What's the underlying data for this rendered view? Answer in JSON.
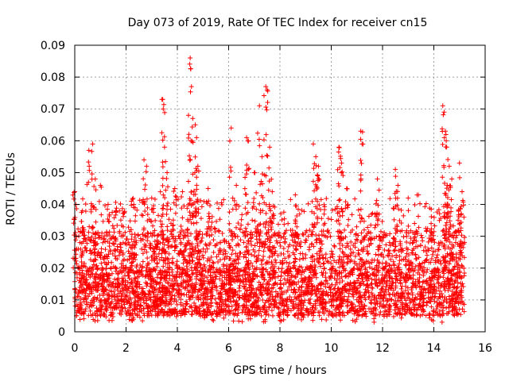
{
  "chart_data": {
    "type": "scatter",
    "title": "Day 073 of 2019, Rate Of TEC Index for receiver cn15",
    "xlabel": "GPS time / hours",
    "ylabel": "ROTI / TECUs",
    "xlim": [
      0,
      16
    ],
    "ylim": [
      0,
      0.09
    ],
    "grid": true,
    "marker": "plus",
    "marker_color": "#ff0000",
    "x_ticks": [
      {
        "value": 0,
        "label": "0"
      },
      {
        "value": 2,
        "label": "2"
      },
      {
        "value": 4,
        "label": "4"
      },
      {
        "value": 6,
        "label": "6"
      },
      {
        "value": 8,
        "label": "8"
      },
      {
        "value": 10,
        "label": "10"
      },
      {
        "value": 12,
        "label": "12"
      },
      {
        "value": 14,
        "label": "14"
      },
      {
        "value": 16,
        "label": "16"
      }
    ],
    "y_ticks": [
      {
        "value": 0,
        "label": "0"
      },
      {
        "value": 0.01,
        "label": "0.01"
      },
      {
        "value": 0.02,
        "label": "0.02"
      },
      {
        "value": 0.03,
        "label": "0.03"
      },
      {
        "value": 0.04,
        "label": "0.04"
      },
      {
        "value": 0.05,
        "label": "0.05"
      },
      {
        "value": 0.06,
        "label": "0.06"
      },
      {
        "value": 0.07,
        "label": "0.07"
      },
      {
        "value": 0.08,
        "label": "0.08"
      },
      {
        "value": 0.09,
        "label": "0.09"
      }
    ],
    "data_x_range": [
      0,
      15.2
    ],
    "typical_band": [
      0.005,
      0.02
    ],
    "series": [
      {
        "name": "ROTI",
        "notable_points": [
          {
            "x": 0.0,
            "y": 0.044
          },
          {
            "x": 0.3,
            "y": 0.038
          },
          {
            "x": 0.55,
            "y": 0.057
          },
          {
            "x": 0.7,
            "y": 0.059
          },
          {
            "x": 0.8,
            "y": 0.048
          },
          {
            "x": 1.0,
            "y": 0.046
          },
          {
            "x": 1.3,
            "y": 0.04
          },
          {
            "x": 1.6,
            "y": 0.038
          },
          {
            "x": 2.3,
            "y": 0.04
          },
          {
            "x": 2.7,
            "y": 0.054
          },
          {
            "x": 2.8,
            "y": 0.052
          },
          {
            "x": 3.0,
            "y": 0.042
          },
          {
            "x": 3.4,
            "y": 0.073
          },
          {
            "x": 3.45,
            "y": 0.07
          },
          {
            "x": 3.5,
            "y": 0.058
          },
          {
            "x": 3.6,
            "y": 0.05
          },
          {
            "x": 3.9,
            "y": 0.045
          },
          {
            "x": 4.2,
            "y": 0.044
          },
          {
            "x": 4.45,
            "y": 0.062
          },
          {
            "x": 4.5,
            "y": 0.086
          },
          {
            "x": 4.55,
            "y": 0.077
          },
          {
            "x": 4.6,
            "y": 0.067
          },
          {
            "x": 4.7,
            "y": 0.065
          },
          {
            "x": 4.75,
            "y": 0.061
          },
          {
            "x": 4.8,
            "y": 0.052
          },
          {
            "x": 5.2,
            "y": 0.045
          },
          {
            "x": 6.1,
            "y": 0.064
          },
          {
            "x": 6.3,
            "y": 0.046
          },
          {
            "x": 6.7,
            "y": 0.061
          },
          {
            "x": 6.75,
            "y": 0.06
          },
          {
            "x": 7.0,
            "y": 0.05
          },
          {
            "x": 7.2,
            "y": 0.071
          },
          {
            "x": 7.3,
            "y": 0.055
          },
          {
            "x": 7.45,
            "y": 0.077
          },
          {
            "x": 7.5,
            "y": 0.076
          },
          {
            "x": 7.6,
            "y": 0.058
          },
          {
            "x": 7.7,
            "y": 0.044
          },
          {
            "x": 8.6,
            "y": 0.043
          },
          {
            "x": 9.3,
            "y": 0.059
          },
          {
            "x": 9.4,
            "y": 0.055
          },
          {
            "x": 9.5,
            "y": 0.052
          },
          {
            "x": 10.3,
            "y": 0.058
          },
          {
            "x": 10.4,
            "y": 0.053
          },
          {
            "x": 10.6,
            "y": 0.045
          },
          {
            "x": 11.15,
            "y": 0.063
          },
          {
            "x": 11.2,
            "y": 0.059
          },
          {
            "x": 11.8,
            "y": 0.048
          },
          {
            "x": 12.5,
            "y": 0.051
          },
          {
            "x": 12.6,
            "y": 0.046
          },
          {
            "x": 13.0,
            "y": 0.042
          },
          {
            "x": 13.4,
            "y": 0.043
          },
          {
            "x": 14.35,
            "y": 0.071
          },
          {
            "x": 14.4,
            "y": 0.069
          },
          {
            "x": 14.45,
            "y": 0.063
          },
          {
            "x": 14.5,
            "y": 0.058
          },
          {
            "x": 14.6,
            "y": 0.052
          },
          {
            "x": 14.7,
            "y": 0.048
          },
          {
            "x": 15.0,
            "y": 0.053
          },
          {
            "x": 15.1,
            "y": 0.044
          }
        ]
      }
    ]
  }
}
